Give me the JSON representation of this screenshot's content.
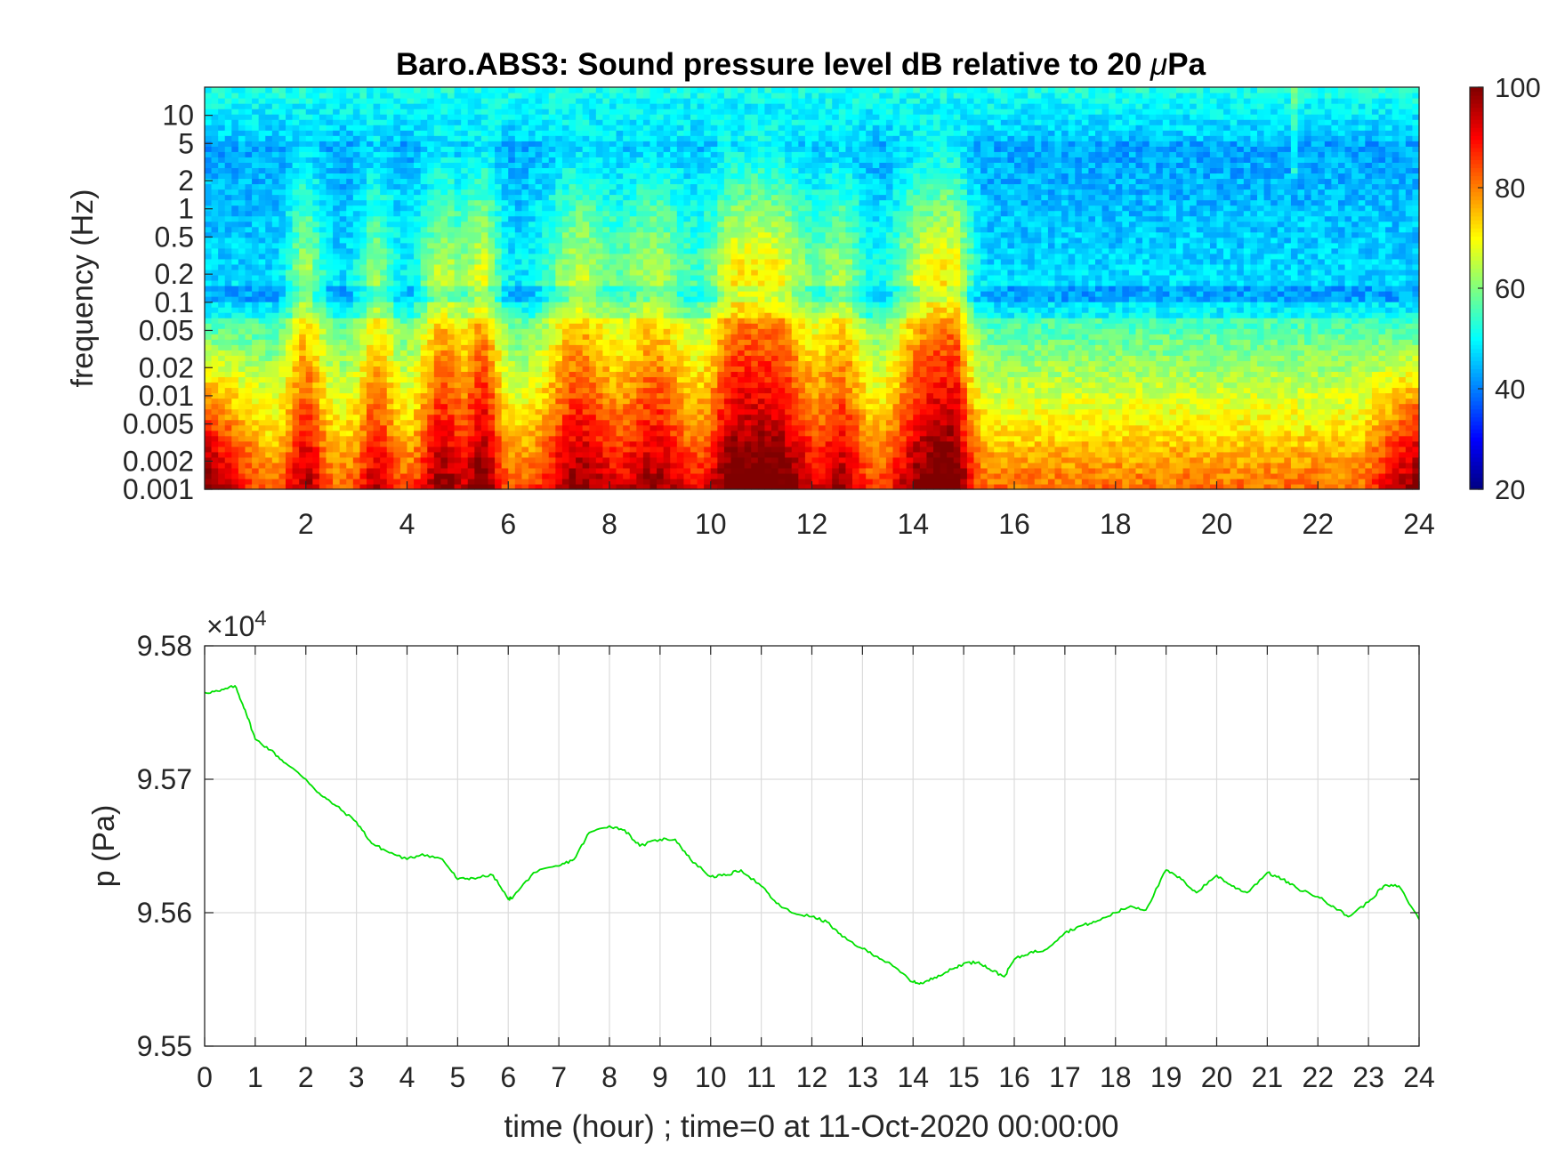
{
  "chart_data": [
    {
      "type": "heatmap",
      "title_prefix": "Baro.ABS3: Sound pressure level dB relative to 20 ",
      "title_mu": "μ",
      "title_suffix": "Pa",
      "ylabel": "frequency (Hz)",
      "y_scale": "log",
      "xlim": [
        0,
        24
      ],
      "ylim": [
        0.001,
        20
      ],
      "x_ticks": [
        2,
        4,
        6,
        8,
        10,
        12,
        14,
        16,
        18,
        20,
        22,
        24
      ],
      "y_ticks": [
        {
          "value": 0.001,
          "label": "0.001"
        },
        {
          "value": 0.002,
          "label": "0.002"
        },
        {
          "value": 0.005,
          "label": "0.005"
        },
        {
          "value": 0.01,
          "label": "0.01"
        },
        {
          "value": 0.02,
          "label": "0.02"
        },
        {
          "value": 0.05,
          "label": "0.05"
        },
        {
          "value": 0.1,
          "label": "0.1"
        },
        {
          "value": 0.2,
          "label": "0.2"
        },
        {
          "value": 0.5,
          "label": "0.5"
        },
        {
          "value": 1,
          "label": "1"
        },
        {
          "value": 2,
          "label": "2"
        },
        {
          "value": 5,
          "label": "5"
        },
        {
          "value": 10,
          "label": "10"
        }
      ],
      "colormap": "jet",
      "clim": [
        20,
        100
      ],
      "colorbar_ticks": [
        20,
        40,
        60,
        80,
        100
      ],
      "activity_bursts": [
        {
          "t": 2.0,
          "w": 0.35,
          "a": 0.8
        },
        {
          "t": 3.4,
          "w": 0.35,
          "a": 0.7
        },
        {
          "t": 4.7,
          "w": 0.45,
          "a": 0.9
        },
        {
          "t": 5.5,
          "w": 0.35,
          "a": 1.0
        },
        {
          "t": 7.4,
          "w": 0.7,
          "a": 0.9
        },
        {
          "t": 8.9,
          "w": 0.7,
          "a": 0.85
        },
        {
          "t": 10.5,
          "w": 0.6,
          "a": 1.0
        },
        {
          "t": 11.4,
          "w": 0.7,
          "a": 1.0
        },
        {
          "t": 12.6,
          "w": 0.45,
          "a": 0.75
        },
        {
          "t": 14.2,
          "w": 0.6,
          "a": 1.0
        },
        {
          "t": 14.8,
          "w": 0.35,
          "a": 0.9
        }
      ],
      "low_level_band_hz": [
        0.07,
        0.15
      ],
      "narrowband_spike": {
        "t": 21.5,
        "f_min": 2,
        "f_max": 20
      }
    },
    {
      "type": "line",
      "ylabel": "p (Pa)",
      "xlabel": "time (hour) ; time=0 at 11-Oct-2020 00:00:00",
      "xlim": [
        0,
        24
      ],
      "ylim": [
        95500,
        95800
      ],
      "y_exponent_label": "×10",
      "y_exponent_power": "4",
      "x_ticks": [
        0,
        1,
        2,
        3,
        4,
        5,
        6,
        7,
        8,
        9,
        10,
        11,
        12,
        13,
        14,
        15,
        16,
        17,
        18,
        19,
        20,
        21,
        22,
        23,
        24
      ],
      "y_ticks": [
        {
          "value": 95500,
          "label": "9.55"
        },
        {
          "value": 95600,
          "label": "9.56"
        },
        {
          "value": 95700,
          "label": "9.57"
        },
        {
          "value": 95800,
          "label": "9.58"
        }
      ],
      "grid": true,
      "line_color": "#00e000",
      "series": [
        {
          "x": [
            0,
            0.3,
            0.6,
            0.8,
            1.0,
            1.3,
            1.6,
            2.0,
            2.3,
            2.6,
            3.0,
            3.3,
            3.6,
            4.0,
            4.3,
            4.7,
            5.0,
            5.3,
            5.7,
            6.0,
            6.1,
            6.5,
            7.0,
            7.3,
            7.6,
            8.0,
            8.3,
            8.6,
            9.0,
            9.3,
            9.6,
            10.0,
            10.3,
            10.6,
            11.0,
            11.3,
            11.6,
            12.0,
            12.3,
            12.6,
            13.0,
            13.3,
            13.6,
            14.0,
            14.2,
            14.5,
            14.8,
            15.0,
            15.3,
            15.5,
            15.8,
            16.0,
            16.3,
            16.6,
            17.0,
            17.3,
            17.6,
            18.0,
            18.3,
            18.6,
            19.0,
            19.3,
            19.6,
            20.0,
            20.3,
            20.6,
            21.0,
            21.3,
            21.6,
            22.0,
            22.3,
            22.6,
            23.0,
            23.3,
            23.6,
            24.0
          ],
          "y": [
            95765,
            95766,
            95770,
            95752,
            95730,
            95722,
            95712,
            95700,
            95688,
            95680,
            95668,
            95652,
            95646,
            95640,
            95644,
            95640,
            95625,
            95626,
            95628,
            95610,
            95612,
            95630,
            95635,
            95640,
            95660,
            95665,
            95662,
            95650,
            95655,
            95655,
            95640,
            95627,
            95628,
            95632,
            95620,
            95607,
            95600,
            95597,
            95593,
            95582,
            95573,
            95567,
            95560,
            95548,
            95547,
            95553,
            95558,
            95562,
            95563,
            95558,
            95552,
            95565,
            95570,
            95572,
            95585,
            95590,
            95593,
            95600,
            95605,
            95602,
            95632,
            95625,
            95615,
            95628,
            95620,
            95615,
            95630,
            95625,
            95618,
            95612,
            95605,
            95597,
            95608,
            95620,
            95620,
            95595
          ]
        }
      ]
    }
  ]
}
